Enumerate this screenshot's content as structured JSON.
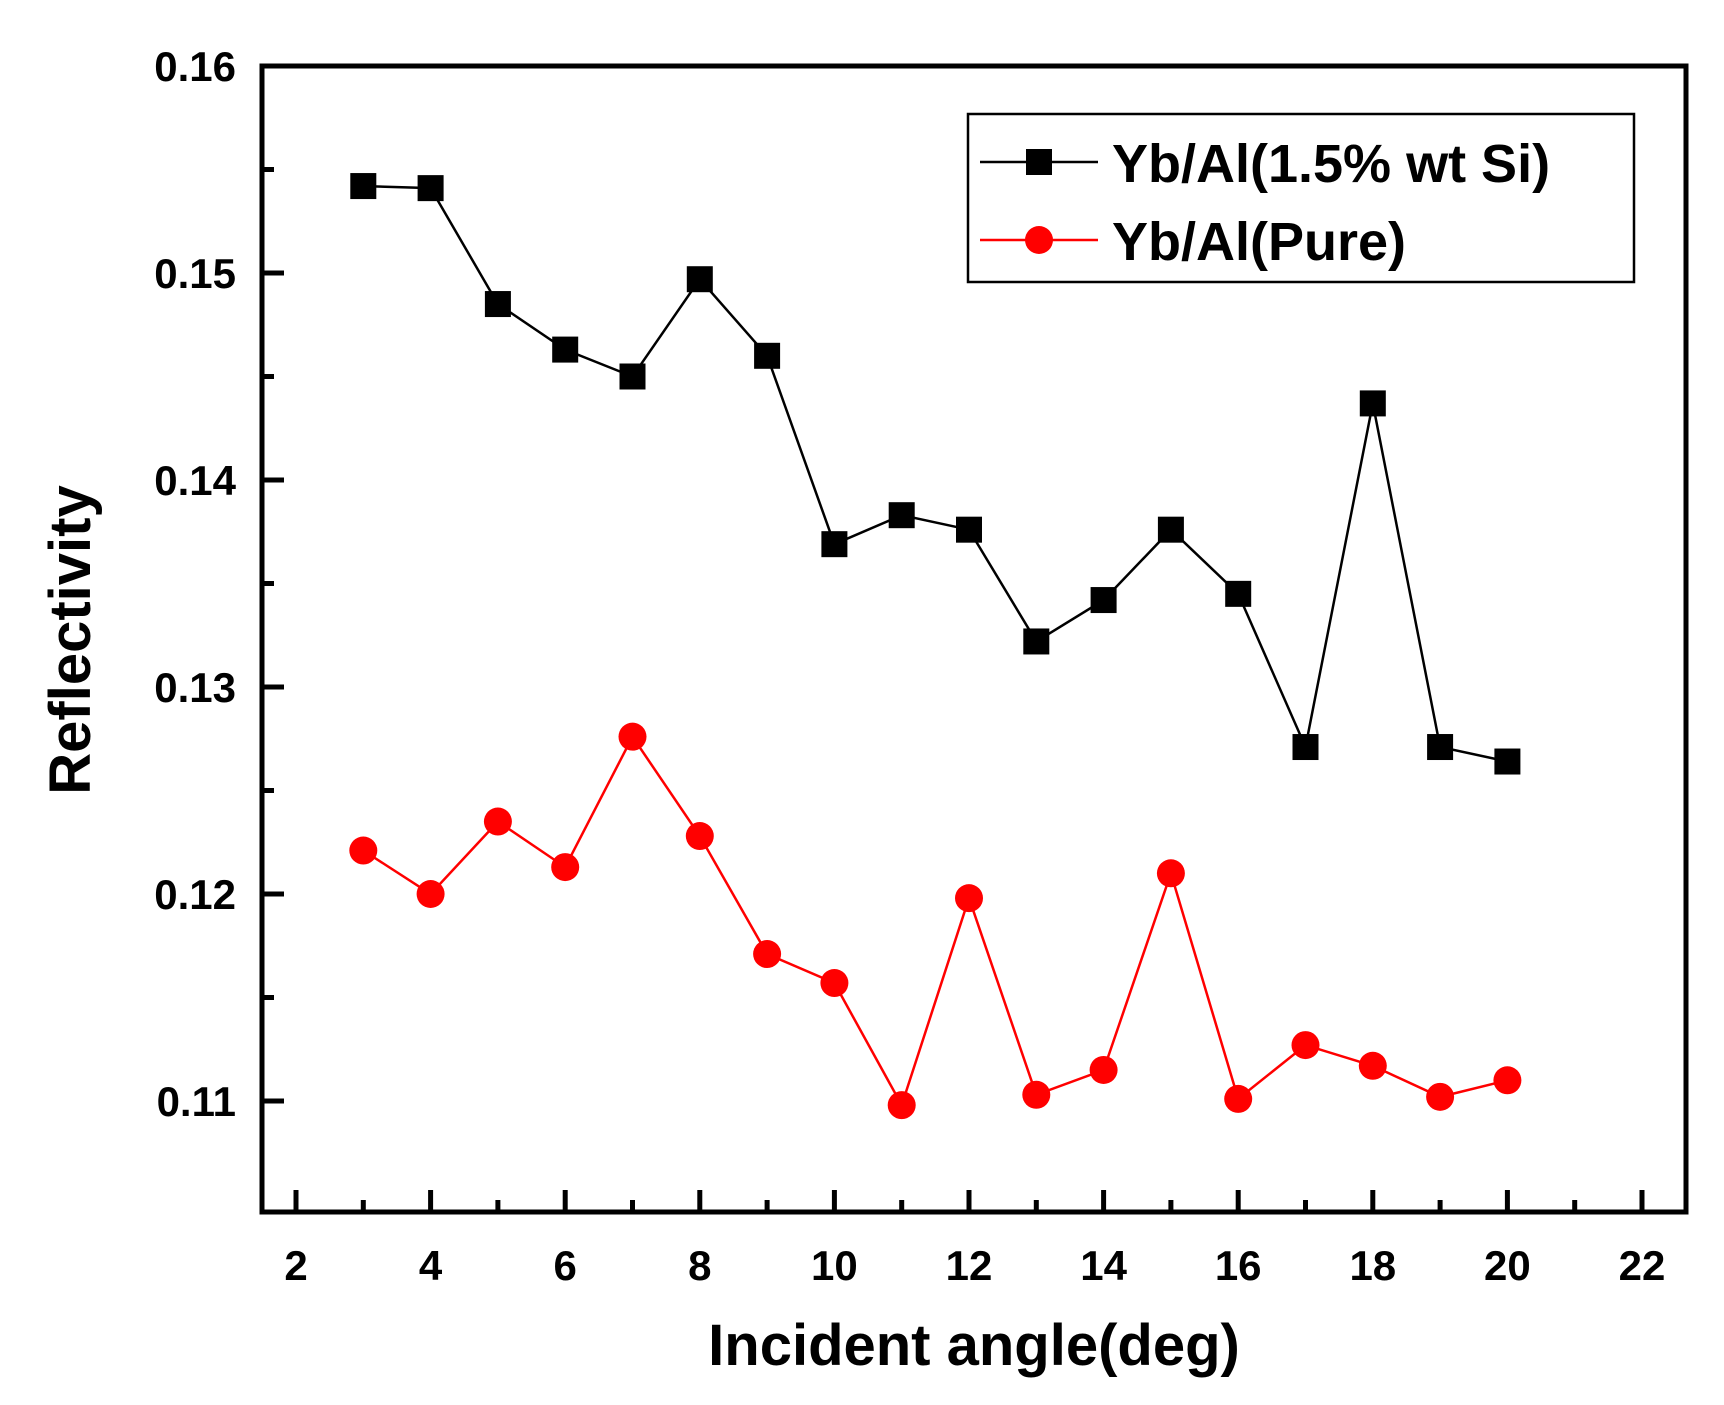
{
  "chart_data": {
    "type": "line",
    "title": "",
    "xlabel": "Incident angle(deg)",
    "ylabel": "Reflectivity",
    "xlim": [
      1,
      22
    ],
    "ylim": [
      0.105,
      0.16
    ],
    "xticks": [
      2,
      4,
      6,
      8,
      10,
      12,
      14,
      16,
      18,
      20,
      22
    ],
    "xtick_labels": [
      "2",
      "4",
      "6",
      "8",
      "10",
      "12",
      "14",
      "16",
      "18",
      "20",
      "22"
    ],
    "yticks": [
      0.11,
      0.12,
      0.13,
      0.14,
      0.15,
      0.16
    ],
    "ytick_labels": [
      "0.11",
      "0.12",
      "0.13",
      "0.14",
      "0.15",
      "0.16"
    ],
    "grid": false,
    "legend_position": "top-right",
    "x": [
      3,
      4,
      5,
      6,
      7,
      8,
      9,
      10,
      11,
      12,
      13,
      14,
      15,
      16,
      17,
      18,
      19,
      20
    ],
    "series": [
      {
        "name": "Yb/Al(1.5% wt Si)",
        "color": "#000000",
        "marker": "square",
        "values": [
          0.1542,
          0.1541,
          0.1485,
          0.1463,
          0.145,
          0.1497,
          0.146,
          0.1369,
          0.1383,
          0.1376,
          0.1322,
          0.1342,
          0.1376,
          0.1345,
          0.1271,
          0.1437,
          0.1271,
          0.1264
        ]
      },
      {
        "name": "Yb/Al(Pure)",
        "color": "#ff0000",
        "marker": "circle",
        "values": [
          0.1221,
          0.12,
          0.1235,
          0.1213,
          0.1276,
          0.1228,
          0.1171,
          0.1157,
          0.1098,
          0.1198,
          0.1103,
          0.1115,
          0.121,
          0.1101,
          0.1127,
          0.1117,
          0.1102,
          0.111
        ]
      }
    ]
  }
}
